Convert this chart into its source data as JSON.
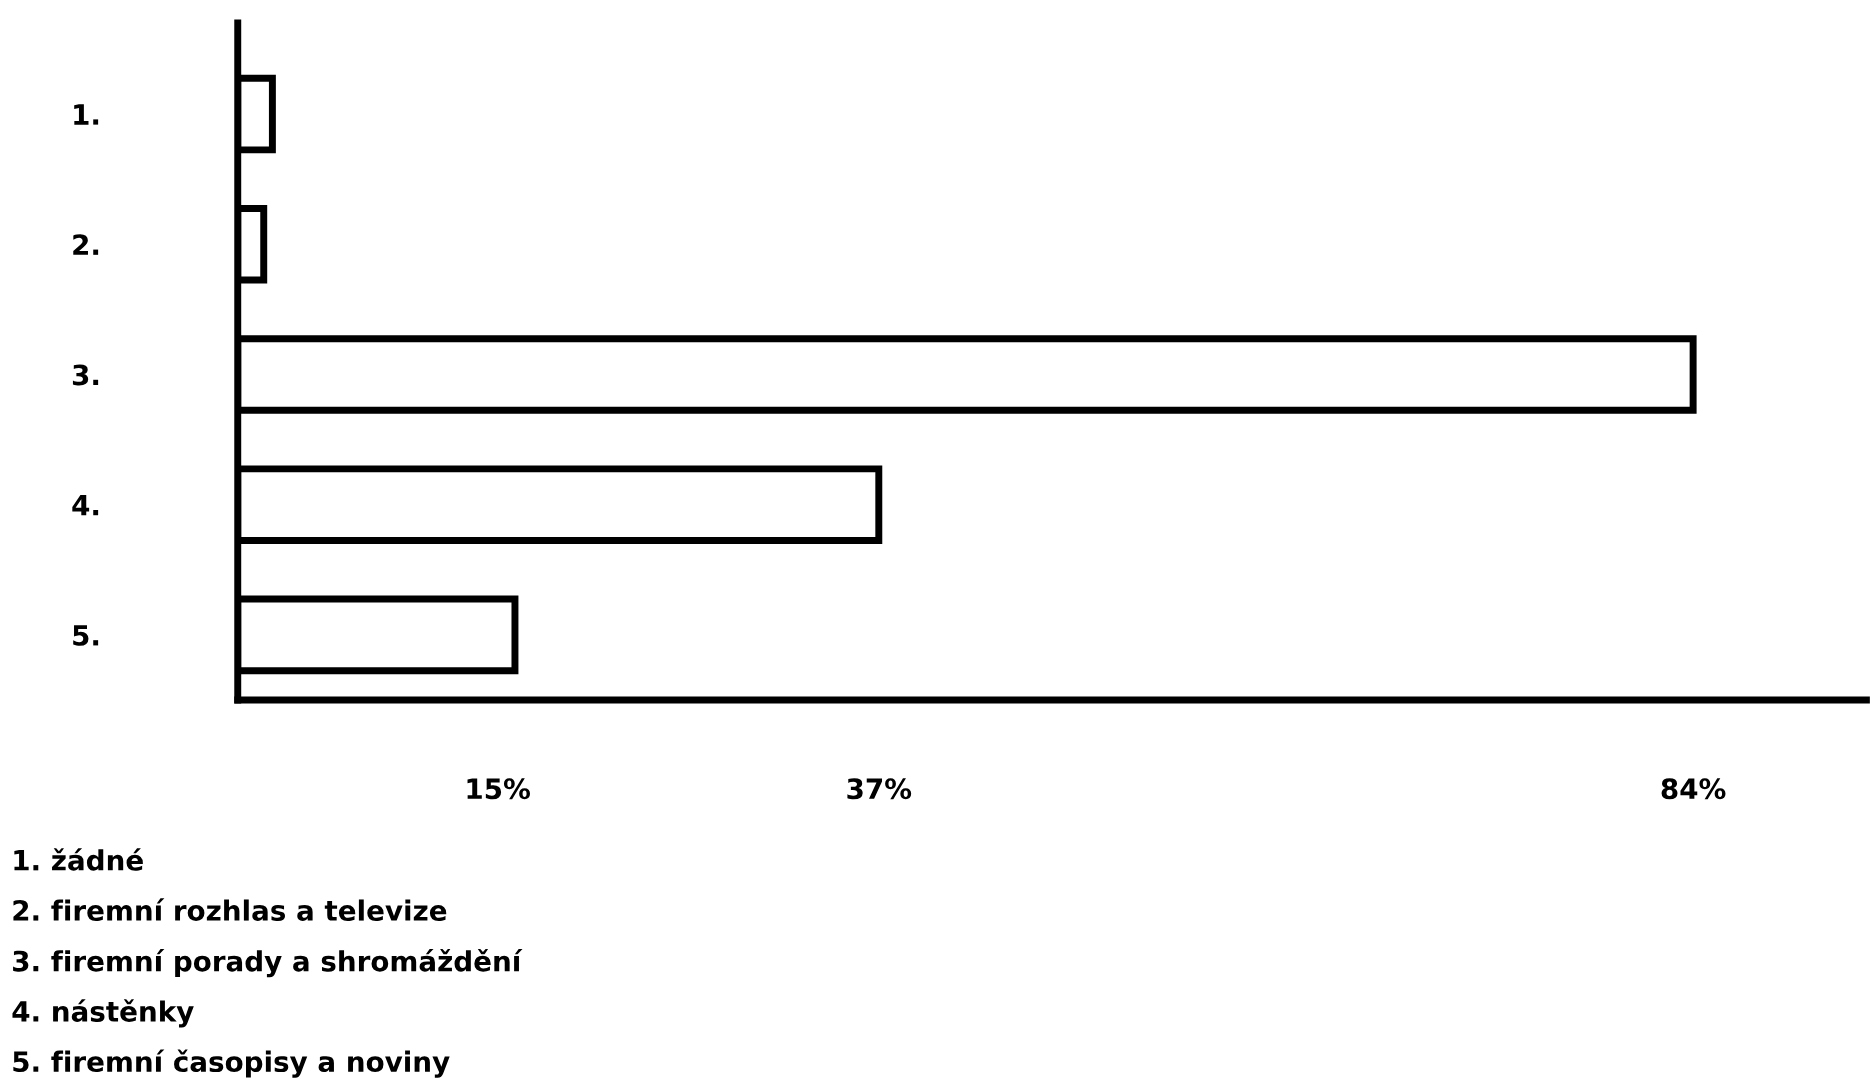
{
  "chart_data": {
    "type": "bar",
    "orientation": "horizontal",
    "categories": [
      "1.",
      "2.",
      "3.",
      "4.",
      "5."
    ],
    "values": [
      2,
      1.5,
      84,
      37,
      16
    ],
    "color": "#ffffff",
    "xlim": [
      0,
      94
    ],
    "xticks": [
      {
        "value": 15,
        "label": "15%"
      },
      {
        "value": 37,
        "label": "37%"
      },
      {
        "value": 84,
        "label": "84%"
      }
    ],
    "grid": false,
    "legend": false,
    "annotations": [
      "1. žádné",
      "2. firemní rozhlas a televize",
      "3. firemní porady a shromáždění",
      "4. nástěnky",
      "5. firemní časopisy a noviny"
    ]
  }
}
